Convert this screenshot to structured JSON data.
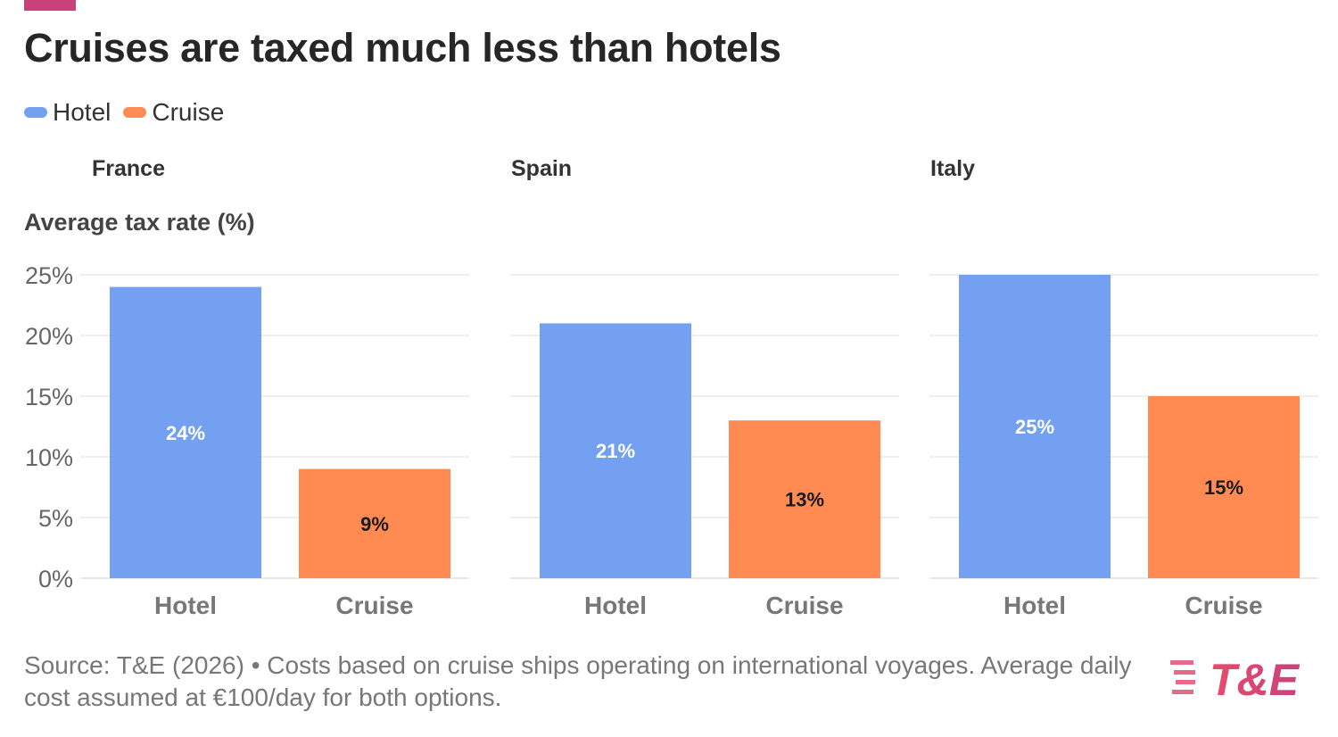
{
  "header": {
    "title": "Cruises are taxed much less than hotels"
  },
  "legend": [
    {
      "label": "Hotel",
      "color": "#73A0F0"
    },
    {
      "label": "Cruise",
      "color": "#FF8A52"
    }
  ],
  "colors": {
    "accent": "#C8417B",
    "hotel": "#73A0F0",
    "cruise": "#FF8A52",
    "grid": "#E8E8E8"
  },
  "chart_data": {
    "type": "bar",
    "ylabel": "Average tax rate (%)",
    "ylim": [
      0,
      25
    ],
    "yticks": [
      "0%",
      "5%",
      "10%",
      "15%",
      "20%",
      "25%"
    ],
    "ytick_values": [
      0,
      5,
      10,
      15,
      20,
      25
    ],
    "grid": true,
    "legend_position": "top-left",
    "categories": [
      "Hotel",
      "Cruise"
    ],
    "panels": [
      {
        "title": "France",
        "values": [
          24,
          9
        ],
        "labels": [
          "24%",
          "9%"
        ]
      },
      {
        "title": "Spain",
        "values": [
          21,
          13
        ],
        "labels": [
          "21%",
          "13%"
        ]
      },
      {
        "title": "Italy",
        "values": [
          25,
          15
        ],
        "labels": [
          "25%",
          "15%"
        ]
      }
    ]
  },
  "footer": {
    "source": "Source: T&E (2026) • Costs based on cruise ships operating on international voyages. Average daily cost assumed at €100/day for both options.",
    "logo_text": "T&E"
  }
}
